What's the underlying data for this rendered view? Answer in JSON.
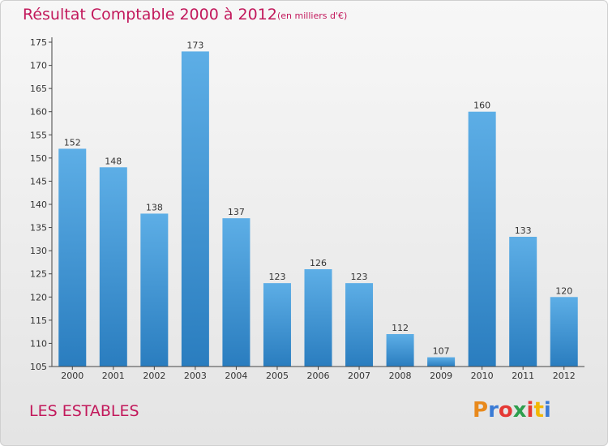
{
  "header": {
    "title": "Résultat Comptable 2000 à 2012",
    "subtitle": "(en milliers d'€)"
  },
  "footer": {
    "location": "LES ESTABLES",
    "brand": "Proxiti"
  },
  "colors": {
    "title": "#c2185b",
    "bar_top": "#5daee6",
    "bar_bottom": "#2a7dbf",
    "brand_letters": [
      "#e8891c",
      "#3a7bd5",
      "#e53935",
      "#2e9e4d",
      "#e53935",
      "#f2b705",
      "#3a7bd5"
    ]
  },
  "chart_data": {
    "type": "bar",
    "categories": [
      "2000",
      "2001",
      "2002",
      "2003",
      "2004",
      "2005",
      "2006",
      "2007",
      "2008",
      "2009",
      "2010",
      "2011",
      "2012"
    ],
    "values": [
      152,
      148,
      138,
      173,
      137,
      123,
      126,
      123,
      112,
      107,
      160,
      133,
      120
    ],
    "title": "Résultat Comptable 2000 à 2012",
    "subtitle": "(en milliers d'€)",
    "xlabel": "",
    "ylabel": "",
    "ylim": [
      105,
      175
    ],
    "yticks": [
      105,
      110,
      115,
      120,
      125,
      130,
      135,
      140,
      145,
      150,
      155,
      160,
      165,
      170,
      175
    ],
    "grid": false,
    "data_labels": true
  }
}
